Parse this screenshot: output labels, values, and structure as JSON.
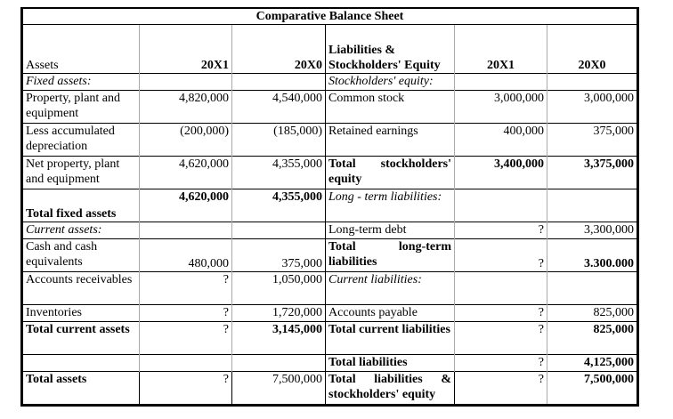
{
  "title": "Comparative Balance Sheet",
  "headers": {
    "assets": "Assets",
    "x1": "20X1",
    "x0": "20X0",
    "liabilities": "Liabilities & Stockholders' Equity",
    "rx1": "20X1",
    "rx0": "20X0"
  },
  "rows": [
    {
      "l": {
        "label": "Fixed assets:",
        "x1": "",
        "x0": ""
      },
      "r": {
        "label": "Stockholders' equity:",
        "x1": "",
        "x0": ""
      }
    },
    {
      "l": {
        "label": "Property, plant and equipment",
        "x1": "4,820,000",
        "x0": "4,540,000"
      },
      "r": {
        "label": "Common stock",
        "x1": "3,000,000",
        "x0": "3,000,000"
      }
    },
    {
      "l": {
        "label": "Less accumulated depreciation",
        "x1": "(200,000)",
        "x0": "(185,000)"
      },
      "r": {
        "label": "Retained earnings",
        "x1": "400,000",
        "x0": "375,000"
      }
    },
    {
      "l": {
        "label": "Net property, plant and equipment",
        "x1": "4,620,000",
        "x0": "4,355,000"
      },
      "r": {
        "label": "Total stockholders' equity",
        "x1": "3,400,000",
        "x0": "3,375,000"
      }
    },
    {
      "l": {
        "label": "Total fixed assets",
        "x1": "4,620,000",
        "x0": "4,355,000"
      },
      "r": {
        "label": "Long - term liabilities:",
        "x1": "",
        "x0": ""
      }
    },
    {
      "l": {
        "label": "Current assets:",
        "x1": "",
        "x0": ""
      },
      "r": {
        "label": "Long-term debt",
        "x1": "?",
        "x0": "3,300,000"
      }
    },
    {
      "l": {
        "label": "Cash and cash equivalents",
        "x1": "480,000",
        "x0": "375,000"
      },
      "r": {
        "label": "Total long-term liabilities",
        "x1": "?",
        "x0": "3.300.000"
      }
    },
    {
      "l": {
        "label": "Accounts receivables",
        "x1": "?",
        "x0": "1,050,000"
      },
      "r": {
        "label": "Current liabilities:",
        "x1": "",
        "x0": ""
      }
    },
    {
      "l": {
        "label": "Inventories",
        "x1": "?",
        "x0": "1,720,000"
      },
      "r": {
        "label": "Accounts payable",
        "x1": "?",
        "x0": "825,000"
      }
    },
    {
      "l": {
        "label": "Total current assets",
        "x1": "?",
        "x0": "3,145,000"
      },
      "r": {
        "label": "Total current liabilities",
        "x1": "?",
        "x0": "825,000"
      }
    },
    {
      "l": {
        "label": "",
        "x1": "",
        "x0": ""
      },
      "r": {
        "label": "Total liabilities",
        "x1": "?",
        "x0": "4,125,000"
      }
    },
    {
      "l": {
        "label": "Total assets",
        "x1": "?",
        "x0": "7,500,000"
      },
      "r": {
        "label": "Total liabilities & stockholders' equity",
        "x1": "?",
        "x0": "7,500,000"
      }
    }
  ]
}
